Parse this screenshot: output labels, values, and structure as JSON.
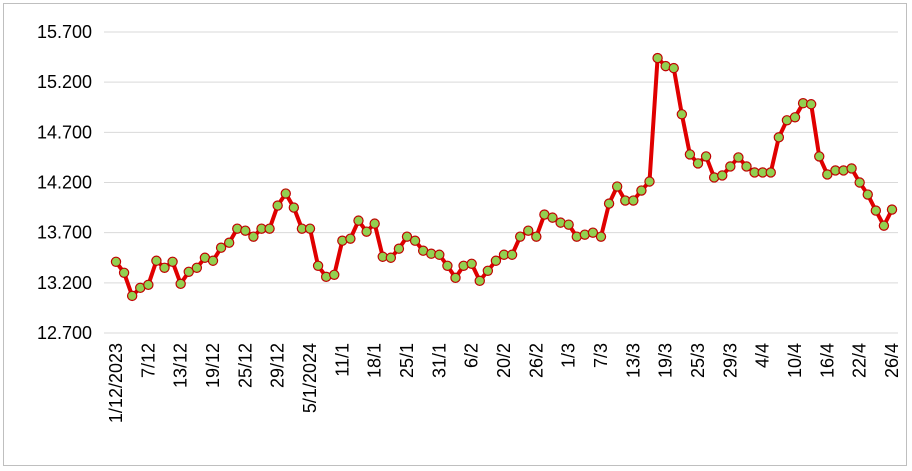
{
  "chart_data": {
    "type": "line",
    "title": "",
    "xlabel": "",
    "ylabel": "",
    "ylim": [
      12700,
      15700
    ],
    "yticks": [
      12700,
      13200,
      13700,
      14200,
      14700,
      15200,
      15700
    ],
    "ytick_labels": [
      "12.700",
      "13.200",
      "13.700",
      "14.200",
      "14.700",
      "15.200",
      "15.700"
    ],
    "grid": "horizontal",
    "legend": "none",
    "colors": {
      "line": "#e00000",
      "marker_fill": "#92d050",
      "marker_stroke": "#c00000",
      "grid": "#d9d9d9"
    },
    "x_tick_labels": [
      {
        "index": 0,
        "label": "1/12/2023"
      },
      {
        "index": 4,
        "label": "7/12"
      },
      {
        "index": 8,
        "label": "13/12"
      },
      {
        "index": 12,
        "label": "19/12"
      },
      {
        "index": 16,
        "label": "25/12"
      },
      {
        "index": 20,
        "label": "29/12"
      },
      {
        "index": 24,
        "label": "5/1/2024"
      },
      {
        "index": 28,
        "label": "11/1"
      },
      {
        "index": 32,
        "label": "18/1"
      },
      {
        "index": 36,
        "label": "25/1"
      },
      {
        "index": 40,
        "label": "31/1"
      },
      {
        "index": 44,
        "label": "6/2"
      },
      {
        "index": 48,
        "label": "20/2"
      },
      {
        "index": 52,
        "label": "26/2"
      },
      {
        "index": 56,
        "label": "1/3"
      },
      {
        "index": 60,
        "label": "7/3"
      },
      {
        "index": 64,
        "label": "13/3"
      },
      {
        "index": 68,
        "label": "19/3"
      },
      {
        "index": 72,
        "label": "25/3"
      },
      {
        "index": 76,
        "label": "29/3"
      },
      {
        "index": 80,
        "label": "4/4"
      },
      {
        "index": 84,
        "label": "10/4"
      },
      {
        "index": 88,
        "label": "16/4"
      },
      {
        "index": 92,
        "label": "22/4"
      },
      {
        "index": 96,
        "label": "26/4"
      }
    ],
    "series": [
      {
        "values": [
          13410,
          13300,
          13070,
          13150,
          13180,
          13420,
          13350,
          13410,
          13190,
          13310,
          13350,
          13450,
          13420,
          13550,
          13600,
          13740,
          13720,
          13660,
          13740,
          13740,
          13970,
          14090,
          13950,
          13740,
          13740,
          13370,
          13260,
          13280,
          13620,
          13640,
          13820,
          13710,
          13790,
          13460,
          13450,
          13540,
          13660,
          13620,
          13520,
          13490,
          13480,
          13370,
          13250,
          13370,
          13390,
          13220,
          13320,
          13420,
          13480,
          13480,
          13660,
          13720,
          13660,
          13880,
          13850,
          13800,
          13780,
          13660,
          13680,
          13700,
          13660,
          13990,
          14160,
          14020,
          14020,
          14120,
          14210,
          15440,
          15360,
          15340,
          14880,
          14480,
          14390,
          14460,
          14250,
          14270,
          14360,
          14450,
          14360,
          14300,
          14300,
          14300,
          14650,
          14820,
          14850,
          14990,
          14980,
          14460,
          14280,
          14320,
          14320,
          14340,
          14200,
          14080,
          13920,
          13770,
          13930
        ]
      }
    ]
  }
}
